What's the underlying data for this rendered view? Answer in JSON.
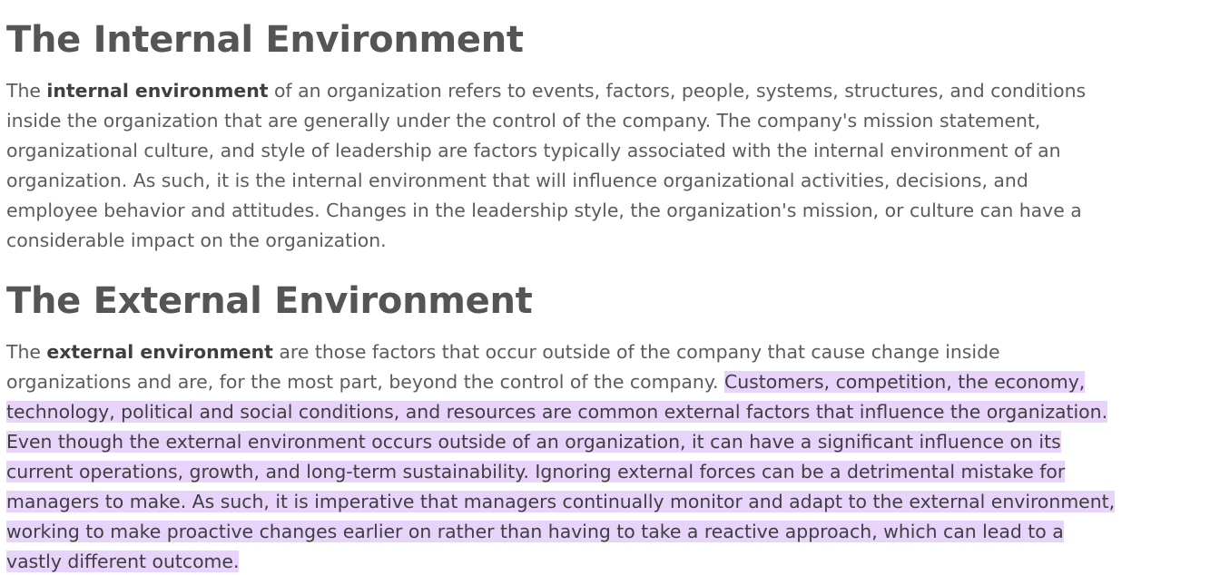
{
  "sections": [
    {
      "heading": "The Internal Environment",
      "lead": "The ",
      "term": "internal environment",
      "body": " of an organization refers to events, factors, people, systems, structures, and conditions inside the organization that are generally under the control of the company. The company's mission statement, organizational culture, and style of leadership are factors typically associated with the internal environment of an organization. As such, it is the internal environment that will influence organizational activities, decisions, and employee behavior and attitudes. Changes in the leadership style, the organization's mission, or culture can have a considerable impact on the organization."
    },
    {
      "heading": "The External Environment",
      "lead": "The ",
      "term": "external environment",
      "body": " are those factors that occur outside of the company that cause change inside organizations and are, for the most part, beyond the control of the company. ",
      "highlighted": "Customers, competition, the economy, technology, political and social conditions, and resources are common external factors that influence the organization. Even though the external environment occurs outside of an organization, it can have a significant influence on its current operations, growth, and long-term sustainability. Ignoring external forces can be a detrimental mistake for managers to make. As such, it is imperative that managers continually monitor and adapt to the external environment, working to make proactive changes earlier on rather than having to take a reactive approach, which can lead to a vastly different outcome."
    }
  ],
  "colors": {
    "highlight": "#e8d4fb",
    "heading": "#555555",
    "text": "#5c5c5c"
  }
}
